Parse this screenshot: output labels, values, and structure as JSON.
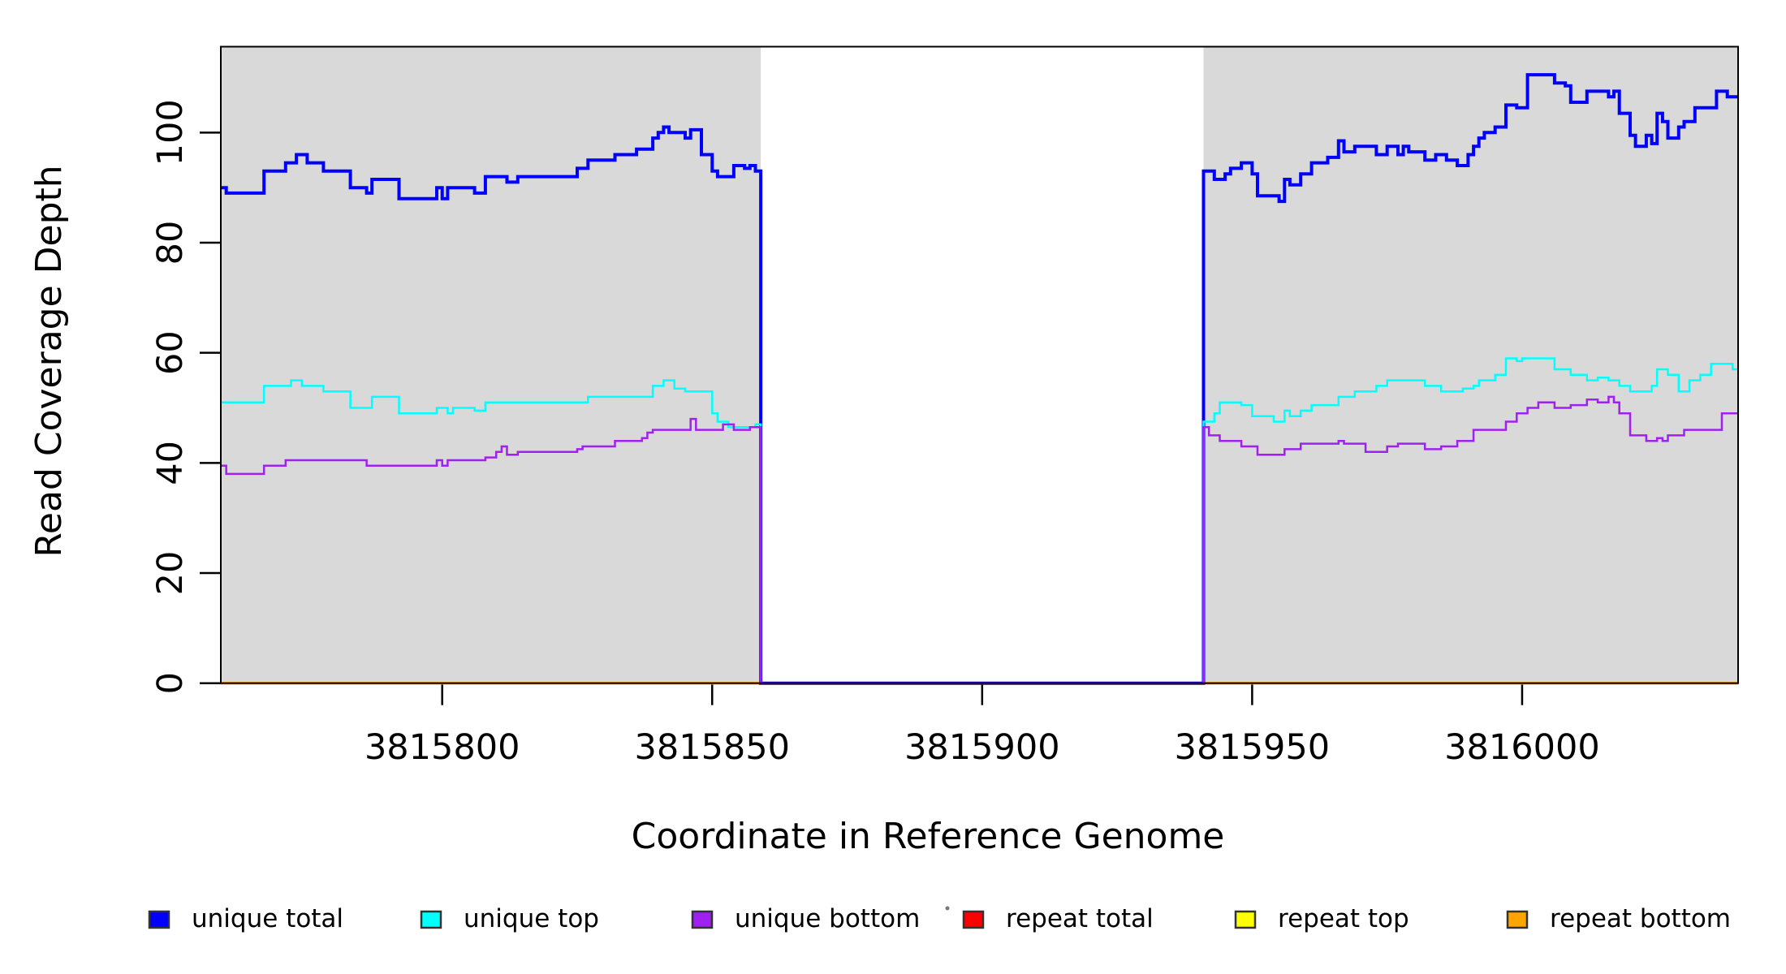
{
  "chart_data": {
    "type": "line",
    "subtype": "step-after",
    "title": "",
    "xlabel": "Coordinate in Reference Genome",
    "ylabel": "Read Coverage Depth",
    "xlim": [
      3815759,
      3816040
    ],
    "ylim": [
      0,
      115.6
    ],
    "x_ticks": [
      3815800,
      3815850,
      3815900,
      3815950,
      3816000
    ],
    "x_tick_labels": [
      "3815800",
      "3815850",
      "3815900",
      "3815950",
      "3816000"
    ],
    "y_ticks": [
      0,
      20,
      40,
      60,
      80,
      100
    ],
    "y_tick_labels": [
      "0",
      "20",
      "40",
      "60",
      "80",
      "100"
    ],
    "grid": false,
    "plot_background": "#ffffff",
    "shaded_regions": {
      "color": "#d9d9d9",
      "regions": [
        [
          3815759,
          3815859
        ],
        [
          3815941,
          3816040
        ]
      ],
      "note": "white gap between 3815859 and 3815941 where unique coverage drops to 0"
    },
    "series": [
      {
        "name": "repeat total",
        "color": "#ff0000",
        "width": 3.5,
        "points": [
          [
            3815759,
            0
          ],
          [
            3816040,
            0
          ]
        ]
      },
      {
        "name": "repeat top",
        "color": "#ffff00",
        "width": 3.5,
        "points": [
          [
            3815759,
            0
          ],
          [
            3816040,
            0
          ]
        ]
      },
      {
        "name": "repeat bottom",
        "color": "#ffa500",
        "width": 3.5,
        "points": [
          [
            3815759,
            0
          ],
          [
            3816040,
            0
          ]
        ]
      },
      {
        "name": "unique total",
        "color": "#0000ff",
        "width": 4,
        "points": [
          [
            3815759,
            90
          ],
          [
            3815760,
            89
          ],
          [
            3815767,
            93
          ],
          [
            3815771,
            94.5
          ],
          [
            3815773,
            96
          ],
          [
            3815775,
            94.5
          ],
          [
            3815778,
            93
          ],
          [
            3815783,
            90
          ],
          [
            3815786,
            89
          ],
          [
            3815787,
            91.5
          ],
          [
            3815792,
            88
          ],
          [
            3815799,
            90
          ],
          [
            3815800,
            88
          ],
          [
            3815801,
            90
          ],
          [
            3815806,
            89
          ],
          [
            3815808,
            92
          ],
          [
            3815812,
            91
          ],
          [
            3815814,
            92
          ],
          [
            3815825,
            93.5
          ],
          [
            3815827,
            95
          ],
          [
            3815832,
            96
          ],
          [
            3815836,
            97
          ],
          [
            3815839,
            99
          ],
          [
            3815840,
            100
          ],
          [
            3815841,
            101
          ],
          [
            3815842,
            100
          ],
          [
            3815845,
            99
          ],
          [
            3815846,
            100.5
          ],
          [
            3815848,
            96
          ],
          [
            3815850,
            93
          ],
          [
            3815851,
            92
          ],
          [
            3815854,
            94
          ],
          [
            3815856,
            93.5
          ],
          [
            3815857,
            94
          ],
          [
            3815858,
            93
          ],
          [
            3815859,
            0
          ],
          [
            3815941,
            93
          ],
          [
            3815943,
            91.5
          ],
          [
            3815945,
            92.5
          ],
          [
            3815946,
            93.5
          ],
          [
            3815948,
            94.5
          ],
          [
            3815950,
            92.5
          ],
          [
            3815951,
            88.5
          ],
          [
            3815955,
            87.5
          ],
          [
            3815956,
            91.5
          ],
          [
            3815957,
            90.5
          ],
          [
            3815959,
            92.5
          ],
          [
            3815961,
            94.5
          ],
          [
            3815964,
            95.5
          ],
          [
            3815966,
            98.5
          ],
          [
            3815967,
            96.5
          ],
          [
            3815969,
            97.5
          ],
          [
            3815973,
            96
          ],
          [
            3815975,
            97.5
          ],
          [
            3815977,
            96
          ],
          [
            3815978,
            97.5
          ],
          [
            3815979,
            96.5
          ],
          [
            3815982,
            95
          ],
          [
            3815984,
            96
          ],
          [
            3815986,
            95
          ],
          [
            3815988,
            94
          ],
          [
            3815990,
            96
          ],
          [
            3815991,
            97.5
          ],
          [
            3815992,
            99
          ],
          [
            3815993,
            100
          ],
          [
            3815995,
            101
          ],
          [
            3815997,
            105
          ],
          [
            3815999,
            104.5
          ],
          [
            3816001,
            110.5
          ],
          [
            3816006,
            109
          ],
          [
            3816008,
            108.5
          ],
          [
            3816009,
            105.5
          ],
          [
            3816012,
            107.5
          ],
          [
            3816016,
            106.5
          ],
          [
            3816017,
            107.5
          ],
          [
            3816018,
            103.5
          ],
          [
            3816020,
            99.5
          ],
          [
            3816021,
            97.5
          ],
          [
            3816023,
            99.5
          ],
          [
            3816024,
            98
          ],
          [
            3816025,
            103.5
          ],
          [
            3816026,
            102
          ],
          [
            3816027,
            99
          ],
          [
            3816029,
            101
          ],
          [
            3816030,
            102
          ],
          [
            3816032,
            104.5
          ],
          [
            3816036,
            107.5
          ],
          [
            3816038,
            106.5
          ],
          [
            3816040,
            106.5
          ]
        ]
      },
      {
        "name": "unique top",
        "color": "#00ffff",
        "width": 2.5,
        "points": [
          [
            3815759,
            51
          ],
          [
            3815767,
            54
          ],
          [
            3815772,
            55
          ],
          [
            3815774,
            54
          ],
          [
            3815778,
            53
          ],
          [
            3815783,
            50
          ],
          [
            3815787,
            52
          ],
          [
            3815792,
            49
          ],
          [
            3815799,
            50
          ],
          [
            3815801,
            49
          ],
          [
            3815802,
            50
          ],
          [
            3815806,
            49.5
          ],
          [
            3815808,
            51
          ],
          [
            3815827,
            52
          ],
          [
            3815839,
            54
          ],
          [
            3815841,
            55
          ],
          [
            3815843,
            53.5
          ],
          [
            3815845,
            53
          ],
          [
            3815850,
            49
          ],
          [
            3815851,
            47.5
          ],
          [
            3815853,
            46.5
          ],
          [
            3815858,
            47
          ],
          [
            3815859,
            0
          ],
          [
            3815941,
            47.5
          ],
          [
            3815943,
            49
          ],
          [
            3815944,
            51
          ],
          [
            3815948,
            50.5
          ],
          [
            3815950,
            48.5
          ],
          [
            3815954,
            47.5
          ],
          [
            3815956,
            49.5
          ],
          [
            3815957,
            48.5
          ],
          [
            3815959,
            49.5
          ],
          [
            3815961,
            50.5
          ],
          [
            3815966,
            52
          ],
          [
            3815969,
            53
          ],
          [
            3815973,
            54
          ],
          [
            3815975,
            55
          ],
          [
            3815982,
            54
          ],
          [
            3815985,
            53
          ],
          [
            3815989,
            53.5
          ],
          [
            3815991,
            54
          ],
          [
            3815992,
            55
          ],
          [
            3815995,
            56
          ],
          [
            3815997,
            59
          ],
          [
            3815999,
            58.5
          ],
          [
            3816000,
            59
          ],
          [
            3816006,
            57
          ],
          [
            3816009,
            56
          ],
          [
            3816012,
            55
          ],
          [
            3816014,
            55.5
          ],
          [
            3816016,
            55
          ],
          [
            3816018,
            54
          ],
          [
            3816020,
            53
          ],
          [
            3816024,
            54
          ],
          [
            3816025,
            57
          ],
          [
            3816027,
            56
          ],
          [
            3816029,
            53
          ],
          [
            3816031,
            55
          ],
          [
            3816033,
            56
          ],
          [
            3816035,
            58
          ],
          [
            3816039,
            57
          ],
          [
            3816040,
            57
          ]
        ]
      },
      {
        "name": "unique bottom",
        "color": "#a020f0",
        "width": 2.5,
        "points": [
          [
            3815759,
            39.5
          ],
          [
            3815760,
            38
          ],
          [
            3815767,
            39.5
          ],
          [
            3815771,
            40.5
          ],
          [
            3815786,
            39.5
          ],
          [
            3815799,
            40.5
          ],
          [
            3815800,
            39.5
          ],
          [
            3815801,
            40.5
          ],
          [
            3815808,
            41
          ],
          [
            3815810,
            42
          ],
          [
            3815811,
            43
          ],
          [
            3815812,
            41.5
          ],
          [
            3815814,
            42
          ],
          [
            3815825,
            42.5
          ],
          [
            3815826,
            43
          ],
          [
            3815832,
            44
          ],
          [
            3815837,
            44.5
          ],
          [
            3815838,
            45.5
          ],
          [
            3815839,
            46
          ],
          [
            3815846,
            48
          ],
          [
            3815847,
            46
          ],
          [
            3815852,
            47
          ],
          [
            3815854,
            46
          ],
          [
            3815857,
            46.5
          ],
          [
            3815859,
            0
          ],
          [
            3815941,
            46.5
          ],
          [
            3815942,
            45
          ],
          [
            3815944,
            44
          ],
          [
            3815948,
            43
          ],
          [
            3815951,
            41.5
          ],
          [
            3815956,
            42.5
          ],
          [
            3815959,
            43.5
          ],
          [
            3815966,
            44
          ],
          [
            3815967,
            43.5
          ],
          [
            3815971,
            42
          ],
          [
            3815975,
            43
          ],
          [
            3815977,
            43.5
          ],
          [
            3815982,
            42.5
          ],
          [
            3815985,
            43
          ],
          [
            3815988,
            44
          ],
          [
            3815991,
            46
          ],
          [
            3815997,
            47.5
          ],
          [
            3815999,
            49
          ],
          [
            3816001,
            50
          ],
          [
            3816003,
            51
          ],
          [
            3816006,
            50
          ],
          [
            3816009,
            50.5
          ],
          [
            3816012,
            51.5
          ],
          [
            3816014,
            51
          ],
          [
            3816016,
            52
          ],
          [
            3816017,
            51
          ],
          [
            3816018,
            49
          ],
          [
            3816020,
            45
          ],
          [
            3816023,
            44
          ],
          [
            3816025,
            44.5
          ],
          [
            3816026,
            44
          ],
          [
            3816027,
            45
          ],
          [
            3816030,
            46
          ],
          [
            3816037,
            49
          ],
          [
            3816040,
            49
          ]
        ]
      }
    ],
    "legend": {
      "position": "bottom",
      "items": [
        {
          "label": "unique total",
          "color": "#0000ff"
        },
        {
          "label": "unique top",
          "color": "#00ffff"
        },
        {
          "label": "unique bottom",
          "color": "#a020f0"
        },
        {
          "label": "repeat total",
          "color": "#ff0000"
        },
        {
          "label": "repeat top",
          "color": "#ffff00"
        },
        {
          "label": "repeat bottom",
          "color": "#ffa500"
        }
      ],
      "stray_dot": {
        "present": true,
        "color": "#777777"
      }
    }
  }
}
